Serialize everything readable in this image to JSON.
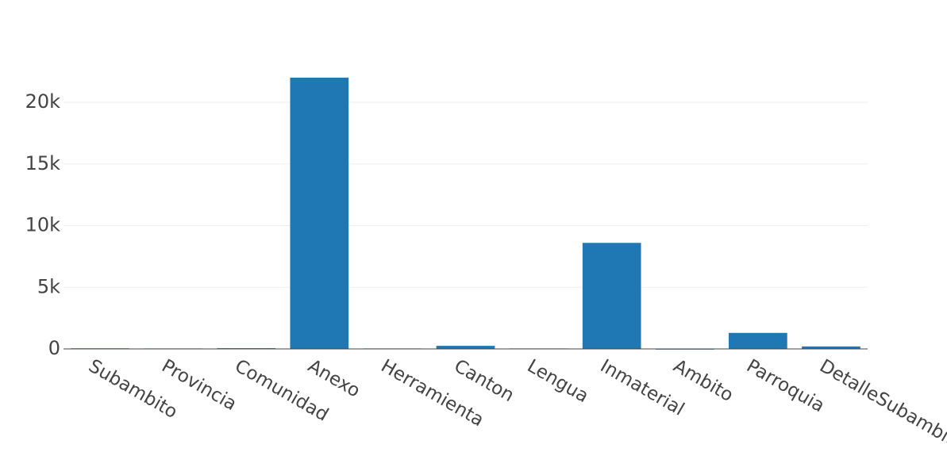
{
  "chart_data": {
    "type": "bar",
    "categories": [
      "Subambito",
      "Provincia",
      "Comunidad",
      "Anexo",
      "Herramienta",
      "Canton",
      "Lengua",
      "Inmaterial",
      "Ambito",
      "Parroquia",
      "DetalleSubambito"
    ],
    "values": [
      50,
      40,
      60,
      22000,
      40,
      250,
      40,
      8600,
      10,
      1300,
      200
    ],
    "color": "#1f77b4",
    "ylim": [
      0,
      23100
    ],
    "yticks": [
      0,
      {
        "value": 5000,
        "label": "5k"
      },
      {
        "value": 10000,
        "label": "10k"
      },
      {
        "value": 15000,
        "label": "15k"
      },
      {
        "value": 20000,
        "label": "20k"
      }
    ],
    "grid": true
  }
}
